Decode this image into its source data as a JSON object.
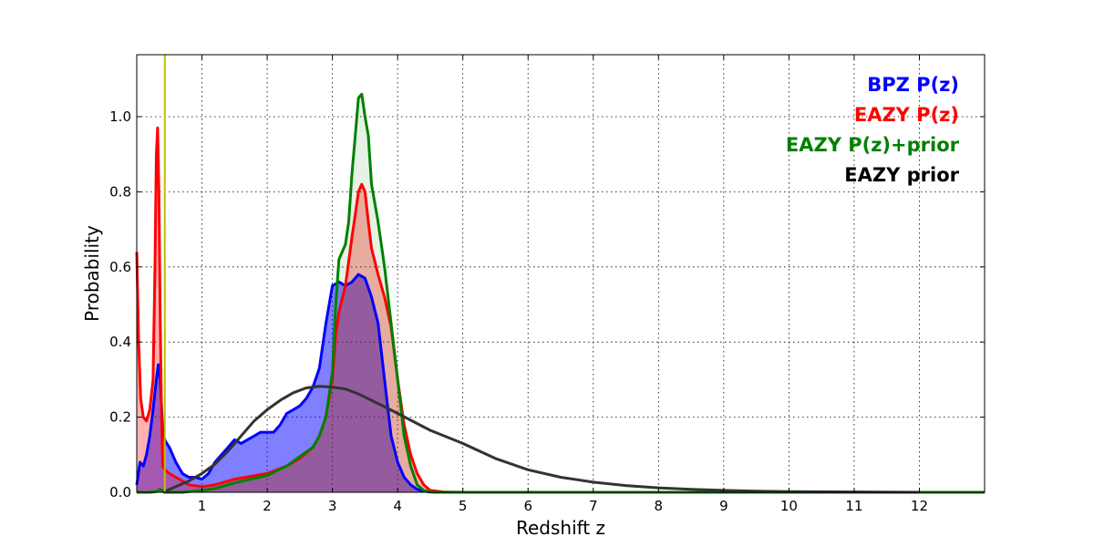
{
  "chart_data": {
    "type": "line",
    "title": "",
    "xlabel": "Redshift z",
    "ylabel": "Probability",
    "xlim": [
      0,
      13
    ],
    "ylim": [
      0,
      1.165
    ],
    "xticks": [
      1,
      2,
      3,
      4,
      5,
      6,
      7,
      8,
      9,
      10,
      11,
      12
    ],
    "xtick_labels": [
      "1",
      "2",
      "3",
      "4",
      "5",
      "6",
      "7",
      "8",
      "9",
      "10",
      "11",
      "12"
    ],
    "yticks": [
      0.0,
      0.2,
      0.4,
      0.6,
      0.8,
      1.0
    ],
    "ytick_labels": [
      "0.0",
      "0.2",
      "0.4",
      "0.6",
      "0.8",
      "1.0"
    ],
    "grid": true,
    "legend_position": "top-right",
    "vline": {
      "x": 0.43,
      "color": "#bfbf00"
    },
    "series": [
      {
        "name": "BPZ P(z)",
        "color": "#0000ff",
        "fill": "#0000ff",
        "fill_opacity": 0.5,
        "x": [
          0,
          0.05,
          0.1,
          0.15,
          0.2,
          0.25,
          0.3,
          0.33,
          0.36,
          0.4,
          0.43,
          0.46,
          0.5,
          0.6,
          0.7,
          0.8,
          0.9,
          1.0,
          1.1,
          1.2,
          1.3,
          1.4,
          1.5,
          1.6,
          1.7,
          1.8,
          1.9,
          2.0,
          2.1,
          2.2,
          2.3,
          2.4,
          2.5,
          2.6,
          2.7,
          2.8,
          2.9,
          3.0,
          3.1,
          3.2,
          3.3,
          3.4,
          3.5,
          3.6,
          3.7,
          3.8,
          3.9,
          4.0,
          4.1,
          4.2,
          4.3,
          4.4,
          4.5,
          4.6,
          5.0,
          13.0
        ],
        "y": [
          0.02,
          0.08,
          0.07,
          0.1,
          0.15,
          0.22,
          0.3,
          0.34,
          0.3,
          0.16,
          0.14,
          0.13,
          0.12,
          0.08,
          0.05,
          0.04,
          0.04,
          0.035,
          0.05,
          0.08,
          0.1,
          0.12,
          0.14,
          0.13,
          0.14,
          0.15,
          0.16,
          0.16,
          0.16,
          0.18,
          0.21,
          0.22,
          0.23,
          0.25,
          0.28,
          0.33,
          0.45,
          0.55,
          0.56,
          0.55,
          0.56,
          0.58,
          0.57,
          0.52,
          0.45,
          0.3,
          0.15,
          0.08,
          0.04,
          0.02,
          0.008,
          0.003,
          0.001,
          0.0,
          0.0,
          0.0
        ]
      },
      {
        "name": "EAZY P(z)",
        "color": "#ff0000",
        "fill": "#ff0000",
        "fill_opacity": 0.3,
        "x": [
          0,
          0.03,
          0.06,
          0.1,
          0.15,
          0.2,
          0.25,
          0.28,
          0.3,
          0.32,
          0.34,
          0.36,
          0.38,
          0.4,
          0.43,
          0.5,
          0.6,
          0.8,
          1.0,
          1.2,
          1.5,
          2.0,
          2.3,
          2.5,
          2.7,
          2.8,
          2.9,
          3.0,
          3.05,
          3.1,
          3.2,
          3.3,
          3.35,
          3.4,
          3.45,
          3.5,
          3.55,
          3.6,
          3.7,
          3.8,
          3.9,
          4.0,
          4.1,
          4.2,
          4.3,
          4.4,
          4.5,
          4.7,
          5.0,
          13.0
        ],
        "y": [
          0.64,
          0.4,
          0.25,
          0.2,
          0.19,
          0.22,
          0.3,
          0.6,
          0.9,
          0.97,
          0.8,
          0.45,
          0.2,
          0.07,
          0.06,
          0.05,
          0.04,
          0.02,
          0.015,
          0.02,
          0.035,
          0.05,
          0.07,
          0.09,
          0.12,
          0.15,
          0.2,
          0.3,
          0.42,
          0.48,
          0.55,
          0.68,
          0.74,
          0.8,
          0.82,
          0.8,
          0.72,
          0.65,
          0.58,
          0.52,
          0.44,
          0.3,
          0.18,
          0.1,
          0.05,
          0.02,
          0.005,
          0.001,
          0.0,
          0.0
        ]
      },
      {
        "name": "EAZY P(z)+prior",
        "color": "#008000",
        "fill": "#008000",
        "fill_opacity": 0.1,
        "x": [
          0,
          0.2,
          0.3,
          0.35,
          0.4,
          0.43,
          0.5,
          0.7,
          1.0,
          1.2,
          1.5,
          2.0,
          2.3,
          2.5,
          2.7,
          2.8,
          2.9,
          3.0,
          3.05,
          3.1,
          3.2,
          3.25,
          3.3,
          3.35,
          3.4,
          3.45,
          3.5,
          3.55,
          3.6,
          3.7,
          3.8,
          3.9,
          4.0,
          4.1,
          4.2,
          4.3,
          4.4,
          4.5,
          4.6,
          5.0,
          13.0
        ],
        "y": [
          0.0,
          0.0,
          0.002,
          0.008,
          0.004,
          0.0,
          0.0,
          0.0,
          0.005,
          0.01,
          0.025,
          0.045,
          0.07,
          0.095,
          0.12,
          0.15,
          0.2,
          0.32,
          0.5,
          0.62,
          0.66,
          0.72,
          0.85,
          0.95,
          1.05,
          1.06,
          1.0,
          0.95,
          0.82,
          0.72,
          0.6,
          0.45,
          0.3,
          0.15,
          0.07,
          0.02,
          0.005,
          0.001,
          0.0,
          0.0,
          0.0
        ]
      },
      {
        "name": "EAZY prior",
        "color": "#333333",
        "fill": null,
        "fill_opacity": 0,
        "x": [
          0.4,
          0.6,
          0.8,
          1.0,
          1.2,
          1.4,
          1.6,
          1.8,
          2.0,
          2.2,
          2.4,
          2.6,
          2.8,
          3.0,
          3.2,
          3.4,
          3.6,
          3.8,
          4.0,
          4.5,
          5.0,
          5.5,
          6.0,
          6.5,
          7.0,
          7.5,
          8.0,
          8.5,
          9.0,
          9.5,
          10.0,
          11.0,
          12.0
        ],
        "y": [
          0.0,
          0.015,
          0.03,
          0.05,
          0.075,
          0.11,
          0.15,
          0.19,
          0.22,
          0.245,
          0.265,
          0.278,
          0.282,
          0.28,
          0.275,
          0.262,
          0.245,
          0.228,
          0.21,
          0.165,
          0.13,
          0.09,
          0.06,
          0.04,
          0.027,
          0.018,
          0.012,
          0.008,
          0.005,
          0.003,
          0.002,
          0.001,
          0.0
        ]
      }
    ]
  }
}
